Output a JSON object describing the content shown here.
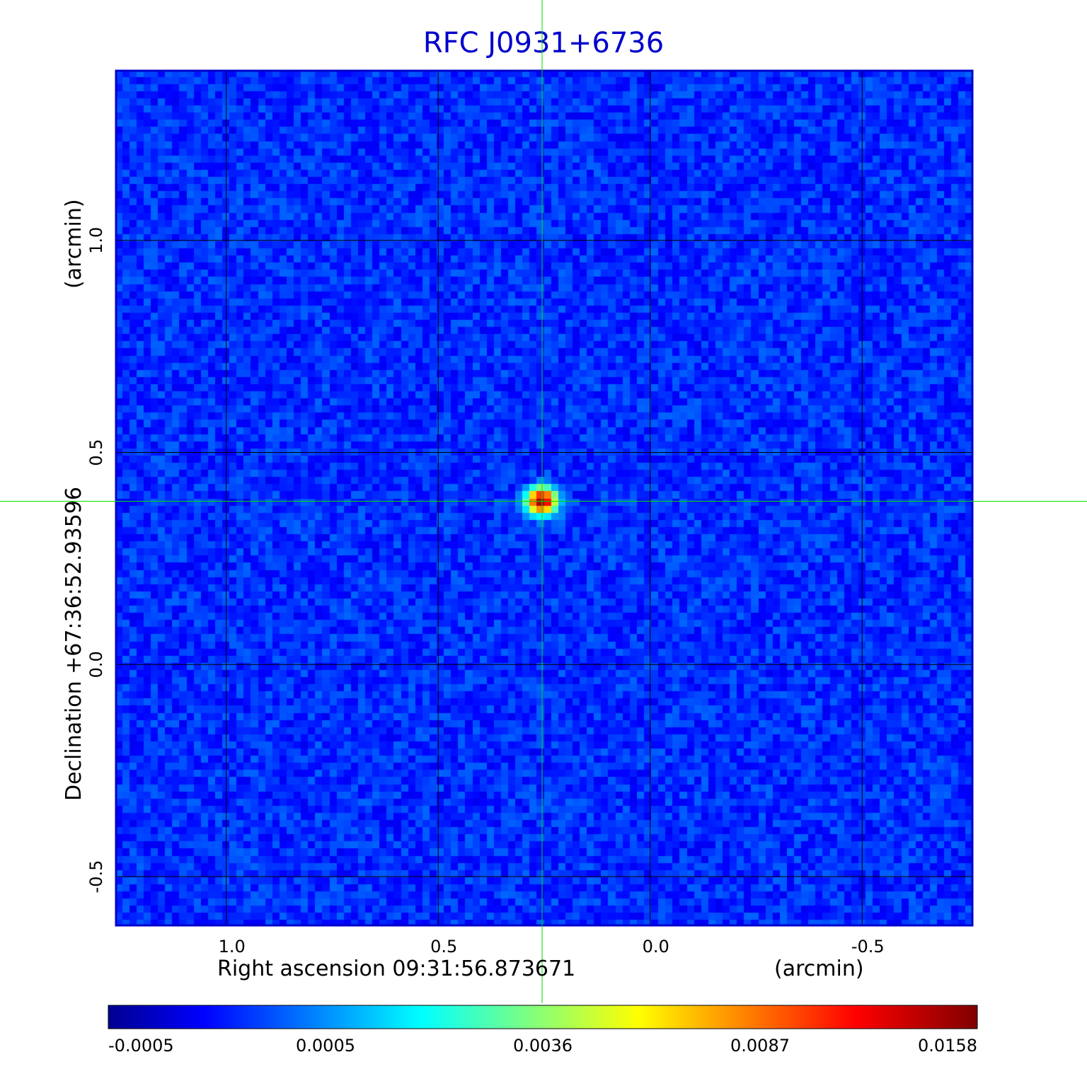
{
  "chart_data": {
    "type": "heatmap",
    "title": "RFC J0931+6736",
    "xlabel": "Right ascension  09:31:56.873671",
    "xunit": "(arcmin)",
    "ylabel": "Declination  +67:36:52.93596",
    "yunit": "(arcmin)",
    "x_ticks": [
      "1.0",
      "0.5",
      "0.0",
      "-0.5"
    ],
    "y_ticks": [
      "1.0",
      "0.5",
      "0.0",
      "-0.5"
    ],
    "x_tick_values": [
      1.0,
      0.5,
      0.0,
      -0.5
    ],
    "y_tick_values": [
      1.0,
      0.5,
      0.0,
      -0.5
    ],
    "xlim": [
      1.26,
      -0.76
    ],
    "ylim": [
      -0.615,
      1.4
    ],
    "grid": true,
    "crosshair": {
      "x": 0.255,
      "y": 0.385
    },
    "source_peak": {
      "x": 0.255,
      "y": 0.385,
      "value": 0.0158
    },
    "noise_level": 0.0002,
    "colorbar": {
      "colormap": "jet",
      "ticks": [
        "-0.0005",
        "0.0005",
        "0.0036",
        "0.0087",
        "0.0158"
      ],
      "tick_values": [
        -0.0005,
        0.0005,
        0.0036,
        0.0087,
        0.0158
      ],
      "range": [
        -0.0005,
        0.0158
      ]
    }
  },
  "colors": {
    "title": "#0000cc",
    "frame": "#0000cc",
    "grid": "#000000",
    "crosshair": "#00dd00"
  }
}
